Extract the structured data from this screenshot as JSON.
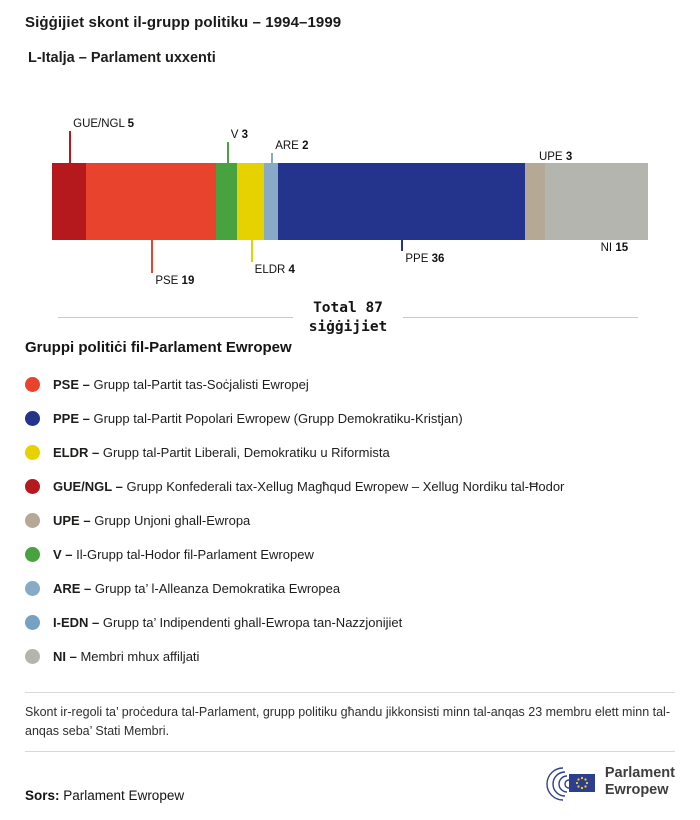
{
  "header": {
    "title": "Siġġijiet skont il-grupp politiku – 1994–1999",
    "subtitle": "L-Italja – Parlament uxxenti"
  },
  "chart_data": {
    "type": "bar",
    "orientation": "horizontal-stacked",
    "title": "Siġġijiet skont il-grupp politiku – 1994–1999",
    "subtitle": "L-Italja – Parlament uxxenti",
    "total": 87,
    "total_label_line1": "Total 87",
    "total_label_line2": "siġġijiet",
    "segments": [
      {
        "name": "GUE/NGL",
        "value": 5,
        "color": "#b5191e",
        "label_position": "above"
      },
      {
        "name": "PSE",
        "value": 19,
        "color": "#e8432d",
        "label_position": "below"
      },
      {
        "name": "V",
        "value": 3,
        "color": "#47a23f",
        "label_position": "above"
      },
      {
        "name": "ELDR",
        "value": 4,
        "color": "#e6d200",
        "label_position": "below"
      },
      {
        "name": "ARE",
        "value": 2,
        "color": "#87abc7",
        "label_position": "above"
      },
      {
        "name": "PPE",
        "value": 36,
        "color": "#24338c",
        "label_position": "below"
      },
      {
        "name": "UPE",
        "value": 3,
        "color": "#b5a894",
        "label_position": "above"
      },
      {
        "name": "NI",
        "value": 15,
        "color": "#b5b5b0",
        "label_position": "below"
      }
    ]
  },
  "legend": {
    "heading": "Gruppi politiċi fil-Parlament Ewropew",
    "items": [
      {
        "abbr": "PSE –",
        "desc": "Grupp tal-Partit tas-Soċjalisti Ewropej",
        "color": "#e8432d"
      },
      {
        "abbr": "PPE –",
        "desc": "Grupp tal-Partit Popolari Ewropew (Grupp Demokratiku-Kristjan)",
        "color": "#24338c"
      },
      {
        "abbr": "ELDR –",
        "desc": "Grupp tal-Partit Liberali, Demokratiku u Riformista",
        "color": "#e6d200"
      },
      {
        "abbr": "GUE/NGL –",
        "desc": "Grupp Konfederali tax-Xellug Magħqud Ewropew – Xellug Nordiku tal-Ħodor",
        "color": "#b5191e"
      },
      {
        "abbr": "UPE –",
        "desc": "Grupp Unjoni ghall-Ewropa",
        "color": "#b5a894"
      },
      {
        "abbr": "V –",
        "desc": "Il-Grupp tal-Hodor fil-Parlament Ewropew",
        "color": "#47a23f"
      },
      {
        "abbr": "ARE –",
        "desc": "Grupp ta’ l-Alleanza Demokratika Ewropea",
        "color": "#87abc7"
      },
      {
        "abbr": "I-EDN –",
        "desc": "Grupp ta’ Indipendenti ghall-Ewropa tan-Nazzjonijiet",
        "color": "#74a2c0"
      },
      {
        "abbr": "NI –",
        "desc": "Membri mhux affiljati",
        "color": "#b5b5b0"
      }
    ]
  },
  "footnote": "Skont ir-regoli ta’ proċedura tal-Parlament, grupp politiku għandu jikkonsisti minn tal-anqas 23 membru elett minn tal-anqas seba’ Stati Membri.",
  "footer": {
    "source_label": "Sors:",
    "source_text": "Parlament Ewropew",
    "logo_line1": "Parlament",
    "logo_line2": "Ewropew"
  }
}
